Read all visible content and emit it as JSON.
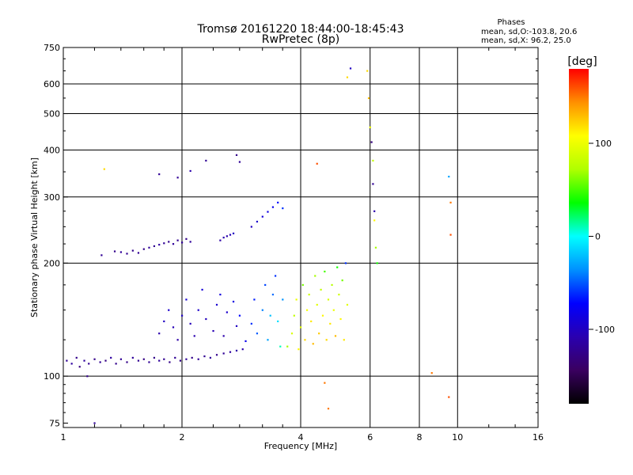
{
  "chart_data": {
    "type": "scatter",
    "title": "Tromsø 20161220 18:44:00-18:45:43",
    "subtitle": "RwPretec (8p)",
    "xlabel": "Frequency [MHz]",
    "ylabel": "Stationary phase Virtual Height [km]",
    "x_scale": "log2",
    "y_scale": "log",
    "xlim": [
      1,
      16
    ],
    "ylim": [
      73,
      750
    ],
    "x_ticks": [
      1,
      2,
      4,
      6,
      8,
      10,
      16
    ],
    "x_ticklabels": [
      "1",
      "2",
      "4",
      "6",
      "8",
      "10",
      "16"
    ],
    "y_ticks": [
      75,
      100,
      200,
      300,
      400,
      500,
      600,
      750
    ],
    "y_ticklabels": [
      "75",
      "100",
      "200",
      "300",
      "400",
      "500",
      "600",
      "750"
    ],
    "grid": true,
    "phases_title": "Phases",
    "phases_stats": [
      "mean, sd,O:-103.8, 20.6",
      "mean, sd,X:  96.2, 25.0"
    ],
    "colorbar": {
      "label": "[deg]",
      "range": [
        -180,
        180
      ],
      "ticks": [
        100,
        0,
        -100
      ],
      "ticklabels": [
        "100",
        "0",
        "-100"
      ],
      "colormap": [
        "#000000",
        "#3a0060",
        "#2a00b0",
        "#0000ff",
        "#0090ff",
        "#00ffff",
        "#00ff00",
        "#b0ff00",
        "#ffff00",
        "#ff9000",
        "#ff0000"
      ]
    },
    "series": [
      {
        "trace": "lower-main",
        "points": [
          [
            1.02,
            110,
            -120
          ],
          [
            1.05,
            108,
            -115
          ],
          [
            1.08,
            112,
            -125
          ],
          [
            1.1,
            106,
            -130
          ],
          [
            1.13,
            110,
            -118
          ],
          [
            1.16,
            108,
            -122
          ],
          [
            1.2,
            111,
            -125
          ],
          [
            1.24,
            109,
            -120
          ],
          [
            1.28,
            110,
            -128
          ],
          [
            1.32,
            112,
            -115
          ],
          [
            1.36,
            108,
            -124
          ],
          [
            1.4,
            111,
            -120
          ],
          [
            1.45,
            109,
            -126
          ],
          [
            1.5,
            112,
            -118
          ],
          [
            1.55,
            110,
            -122
          ],
          [
            1.6,
            111,
            -128
          ],
          [
            1.65,
            109,
            -120
          ],
          [
            1.7,
            112,
            -125
          ],
          [
            1.75,
            110,
            -118
          ],
          [
            1.8,
            111,
            -122
          ],
          [
            1.86,
            109,
            -126
          ],
          [
            1.92,
            112,
            -120
          ],
          [
            1.98,
            110,
            -124
          ],
          [
            2.05,
            111,
            -118
          ],
          [
            2.12,
            112,
            -125
          ],
          [
            2.2,
            111,
            -120
          ],
          [
            2.28,
            113,
            -122
          ],
          [
            2.36,
            112,
            -118
          ],
          [
            2.45,
            114,
            -124
          ],
          [
            2.55,
            115,
            -120
          ],
          [
            2.65,
            116,
            -115
          ],
          [
            2.75,
            117,
            -112
          ],
          [
            2.85,
            118,
            -110
          ]
        ]
      },
      {
        "trace": "lower-spread",
        "points": [
          [
            1.75,
            130,
            -110
          ],
          [
            1.8,
            140,
            -100
          ],
          [
            1.85,
            150,
            -95
          ],
          [
            1.9,
            135,
            -105
          ],
          [
            1.95,
            125,
            -112
          ],
          [
            2.0,
            145,
            -98
          ],
          [
            2.05,
            160,
            -92
          ],
          [
            2.1,
            138,
            -104
          ],
          [
            2.15,
            128,
            -108
          ],
          [
            2.2,
            150,
            -96
          ],
          [
            2.25,
            170,
            -90
          ],
          [
            2.3,
            142,
            -102
          ],
          [
            2.4,
            132,
            -106
          ],
          [
            2.45,
            155,
            -94
          ],
          [
            2.5,
            165,
            -88
          ],
          [
            2.55,
            128,
            -110
          ],
          [
            2.6,
            148,
            -95
          ],
          [
            2.7,
            158,
            -85
          ],
          [
            2.75,
            136,
            -100
          ],
          [
            2.8,
            145,
            -70
          ],
          [
            2.9,
            124,
            -80
          ],
          [
            3.0,
            138,
            -60
          ],
          [
            3.05,
            160,
            -65
          ],
          [
            3.1,
            130,
            -50
          ],
          [
            3.2,
            150,
            -40
          ],
          [
            3.25,
            175,
            -55
          ],
          [
            3.3,
            125,
            -30
          ],
          [
            3.35,
            145,
            -20
          ],
          [
            3.4,
            165,
            -45
          ],
          [
            3.45,
            185,
            -60
          ],
          [
            3.5,
            140,
            -10
          ],
          [
            3.55,
            120,
            10
          ],
          [
            3.6,
            160,
            -35
          ]
        ]
      },
      {
        "trace": "lower-x",
        "points": [
          [
            3.7,
            120,
            70
          ],
          [
            3.8,
            130,
            90
          ],
          [
            3.85,
            145,
            80
          ],
          [
            3.9,
            160,
            100
          ],
          [
            3.95,
            118,
            110
          ],
          [
            4.0,
            135,
            95
          ],
          [
            4.05,
            175,
            60
          ],
          [
            4.1,
            125,
            120
          ],
          [
            4.15,
            150,
            105
          ],
          [
            4.2,
            165,
            85
          ],
          [
            4.25,
            140,
            115
          ],
          [
            4.3,
            122,
            130
          ],
          [
            4.35,
            185,
            70
          ],
          [
            4.4,
            155,
            95
          ],
          [
            4.45,
            130,
            125
          ],
          [
            4.5,
            170,
            80
          ],
          [
            4.55,
            145,
            110
          ],
          [
            4.6,
            190,
            50
          ],
          [
            4.65,
            125,
            120
          ],
          [
            4.7,
            160,
            90
          ],
          [
            4.75,
            138,
            115
          ],
          [
            4.8,
            175,
            75
          ],
          [
            4.85,
            150,
            100
          ],
          [
            4.9,
            128,
            130
          ],
          [
            4.95,
            195,
            40
          ],
          [
            5.0,
            165,
            85
          ],
          [
            5.05,
            142,
            110
          ],
          [
            5.1,
            180,
            60
          ],
          [
            5.15,
            125,
            115
          ],
          [
            5.2,
            200,
            -60
          ],
          [
            5.25,
            155,
            95
          ]
        ]
      },
      {
        "trace": "upper-f",
        "points": [
          [
            1.25,
            210,
            -120
          ],
          [
            1.35,
            215,
            -125
          ],
          [
            1.4,
            214,
            -118
          ],
          [
            1.45,
            212,
            -122
          ],
          [
            1.5,
            216,
            -124
          ],
          [
            1.55,
            213,
            -120
          ],
          [
            1.6,
            218,
            -126
          ],
          [
            1.65,
            220,
            -118
          ],
          [
            1.7,
            222,
            -122
          ],
          [
            1.75,
            224,
            -115
          ],
          [
            1.8,
            226,
            -120
          ],
          [
            1.85,
            228,
            -124
          ],
          [
            1.9,
            225,
            -118
          ],
          [
            1.95,
            230,
            -122
          ],
          [
            2.0,
            227,
            -120
          ],
          [
            2.05,
            232,
            -125
          ],
          [
            2.1,
            228,
            -118
          ],
          [
            2.5,
            230,
            -112
          ],
          [
            2.55,
            234,
            -108
          ],
          [
            2.6,
            236,
            -110
          ],
          [
            2.65,
            238,
            -105
          ],
          [
            2.7,
            240,
            -100
          ],
          [
            3.0,
            250,
            -100
          ],
          [
            3.1,
            258,
            -95
          ],
          [
            3.2,
            266,
            -90
          ],
          [
            3.3,
            274,
            -85
          ],
          [
            3.4,
            282,
            -80
          ],
          [
            3.5,
            290,
            -70
          ],
          [
            3.6,
            280,
            -60
          ]
        ]
      },
      {
        "trace": "scattered",
        "points": [
          [
            1.27,
            356,
            120
          ],
          [
            1.75,
            345,
            -120
          ],
          [
            1.95,
            338,
            -120
          ],
          [
            2.1,
            352,
            -110
          ],
          [
            2.3,
            375,
            -120
          ],
          [
            2.75,
            388,
            -125
          ],
          [
            2.8,
            372,
            -120
          ],
          [
            4.4,
            368,
            160
          ],
          [
            5.25,
            625,
            120
          ],
          [
            5.35,
            660,
            -100
          ],
          [
            5.9,
            650,
            120
          ],
          [
            5.95,
            550,
            130
          ],
          [
            6.0,
            460,
            100
          ],
          [
            6.05,
            420,
            -130
          ],
          [
            6.1,
            375,
            80
          ],
          [
            6.1,
            325,
            -120
          ],
          [
            6.15,
            275,
            -110
          ],
          [
            6.15,
            260,
            110
          ],
          [
            6.2,
            220,
            70
          ],
          [
            6.25,
            200,
            40
          ],
          [
            9.5,
            340,
            -30
          ],
          [
            9.6,
            290,
            150
          ],
          [
            9.6,
            238,
            160
          ],
          [
            8.6,
            102,
            150
          ],
          [
            9.5,
            88,
            160
          ],
          [
            4.7,
            82,
            150
          ],
          [
            1.2,
            75,
            -120
          ],
          [
            1.15,
            100,
            -125
          ],
          [
            4.6,
            96,
            150
          ]
        ]
      }
    ]
  }
}
